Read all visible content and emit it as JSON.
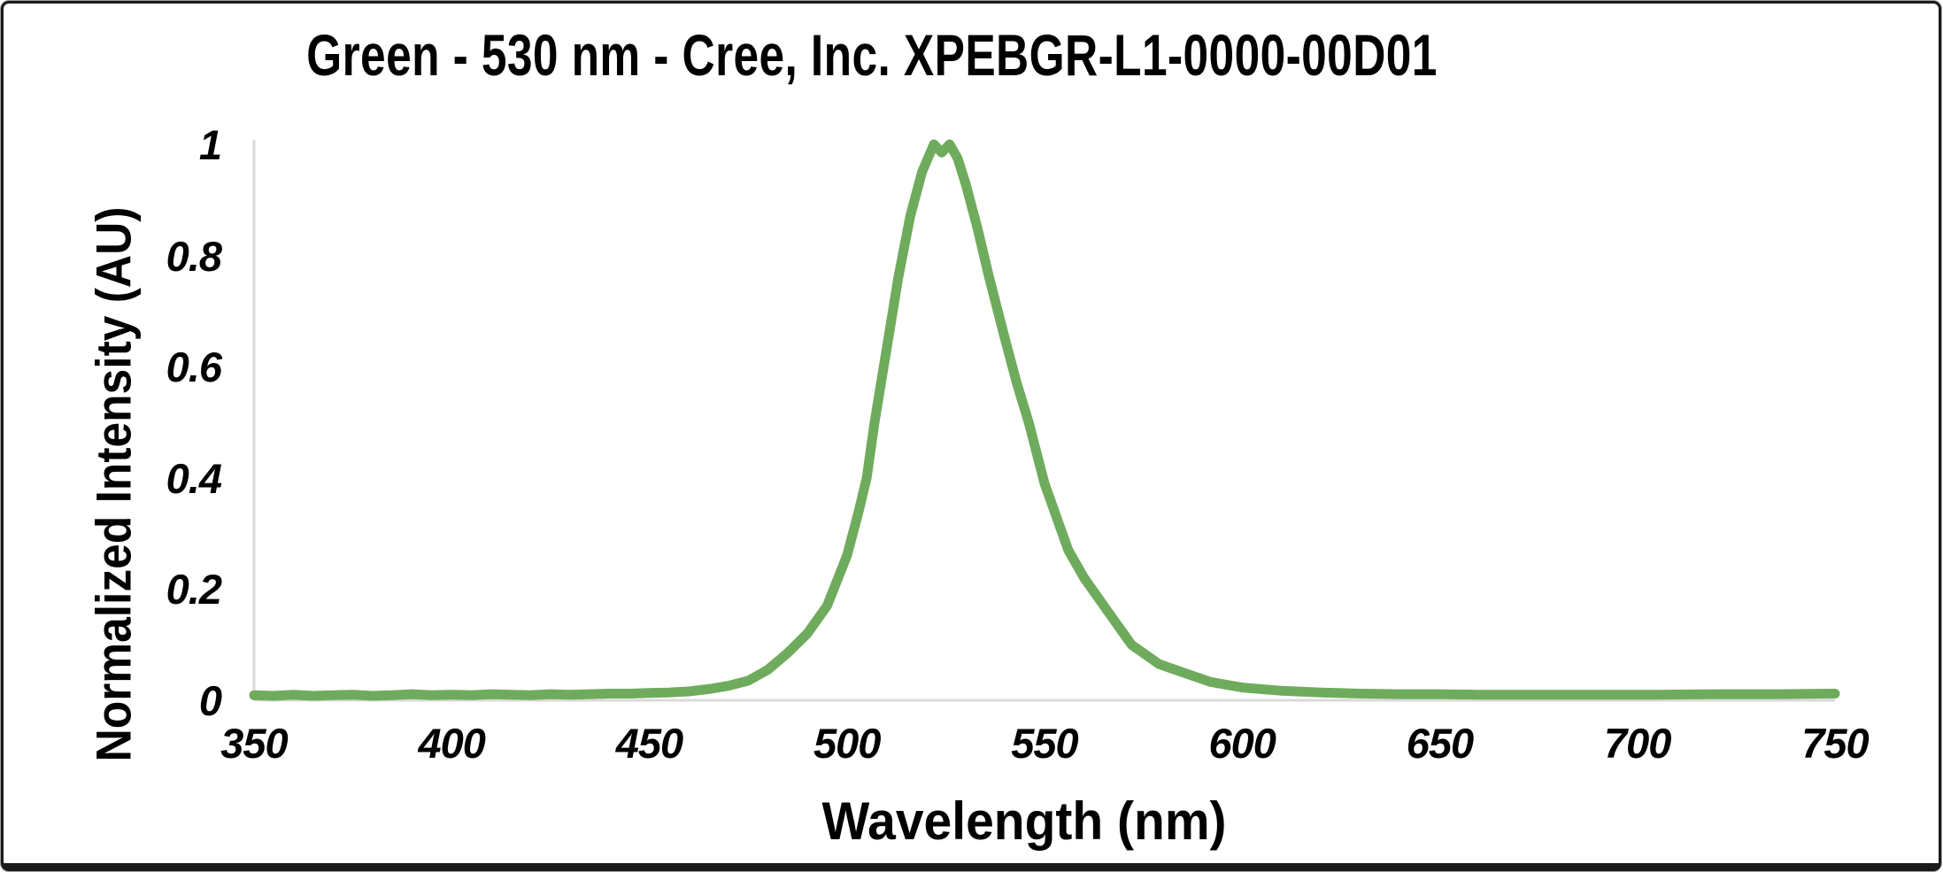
{
  "window": {
    "background": "#ffffff",
    "frame_border_color": "#1b1b1b"
  },
  "chart_data": {
    "type": "line",
    "title": "Green - 530 nm - Cree, Inc. XPEBGR-L1-0000-00D01",
    "xlabel": "Wavelength (nm)",
    "ylabel": "Normalized Intensity (AU)",
    "xlim": [
      350,
      750
    ],
    "ylim": [
      0,
      1
    ],
    "x_ticks": [
      350,
      400,
      450,
      500,
      550,
      600,
      650,
      700,
      750
    ],
    "y_ticks": [
      0,
      0.2,
      0.4,
      0.6,
      0.8,
      1
    ],
    "y_tick_labels": [
      "0",
      "0.2",
      "0.4",
      "0.6",
      "0.8",
      "1"
    ],
    "grid": false,
    "legend_position": "none",
    "axis_line_color": "#d9d9d9",
    "series": [
      {
        "name": "normalized-intensity",
        "color": "#6fab5c",
        "line_width": 11,
        "x": [
          350,
          355,
          360,
          365,
          370,
          375,
          380,
          385,
          390,
          395,
          400,
          405,
          410,
          415,
          420,
          425,
          430,
          435,
          440,
          445,
          450,
          455,
          460,
          465,
          470,
          475,
          480,
          485,
          490,
          495,
          500,
          503,
          505,
          507,
          510,
          513,
          516,
          519,
          522,
          524,
          526,
          528,
          530,
          533,
          536,
          540,
          543,
          546,
          550,
          553,
          556,
          560,
          566,
          572,
          579,
          585,
          592,
          600,
          610,
          620,
          630,
          640,
          650,
          660,
          675,
          690,
          705,
          720,
          735,
          750
        ],
        "y": [
          0.009,
          0.008,
          0.01,
          0.008,
          0.009,
          0.01,
          0.008,
          0.009,
          0.011,
          0.009,
          0.01,
          0.009,
          0.011,
          0.01,
          0.009,
          0.011,
          0.01,
          0.011,
          0.012,
          0.012,
          0.013,
          0.014,
          0.016,
          0.02,
          0.026,
          0.035,
          0.055,
          0.085,
          0.12,
          0.17,
          0.26,
          0.34,
          0.4,
          0.5,
          0.63,
          0.76,
          0.87,
          0.95,
          1.0,
          0.985,
          1.0,
          0.975,
          0.93,
          0.85,
          0.76,
          0.65,
          0.57,
          0.5,
          0.39,
          0.33,
          0.27,
          0.22,
          0.16,
          0.1,
          0.065,
          0.05,
          0.033,
          0.023,
          0.017,
          0.014,
          0.012,
          0.011,
          0.011,
          0.01,
          0.01,
          0.01,
          0.01,
          0.011,
          0.011,
          0.012
        ]
      }
    ]
  }
}
